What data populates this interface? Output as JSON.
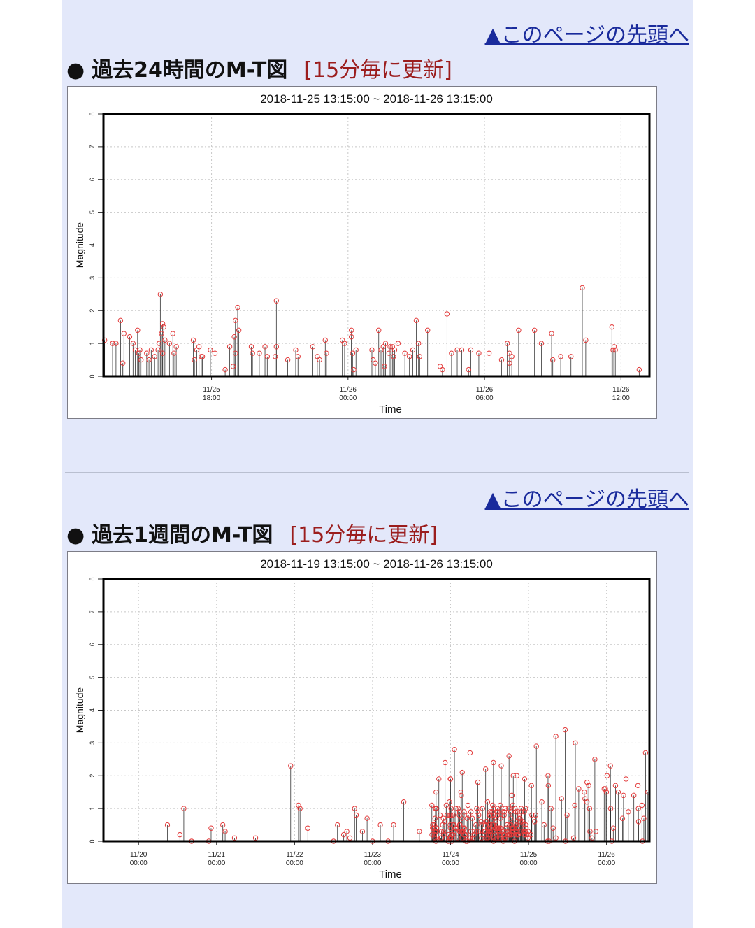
{
  "sections": [
    {
      "top_link": "▲このページの先頭へ",
      "bullet": "●",
      "title": "過去24時間のM-T図",
      "update_note": "[15分毎に更新]"
    },
    {
      "top_link": "▲このページの先頭へ",
      "bullet": "●",
      "title": "過去1週間のM-T図",
      "update_note": "[15分毎に更新]"
    }
  ],
  "colors": {
    "page_background": "#e3e8fa",
    "link": "#1a2b9c",
    "update_note": "#9b1d1d",
    "marker": "#e23a3a",
    "stem": "#333333"
  },
  "chart_data": [
    {
      "type": "scatter",
      "style": "stem-with-circle-markers",
      "title": "2018-11-25 13:15:00 ~ 2018-11-26 13:15:00",
      "xlabel": "Time",
      "ylabel": "Magnitude",
      "x_unit": "hours",
      "xlim": [
        0,
        24
      ],
      "ylim": [
        0,
        8
      ],
      "yticks": [
        "0",
        "1",
        "2",
        "3",
        "4",
        "5",
        "6",
        "7",
        "8"
      ],
      "xticks": [
        {
          "x": 4.75,
          "date": "11/25",
          "time": "18:00"
        },
        {
          "x": 10.75,
          "date": "11/26",
          "time": "00:00"
        },
        {
          "x": 16.75,
          "date": "11/26",
          "time": "06:00"
        },
        {
          "x": 22.75,
          "date": "11/26",
          "time": "12:00"
        }
      ],
      "grid": true,
      "points": [
        {
          "x": 0.05,
          "y": 1.1
        },
        {
          "x": 0.4,
          "y": 1.0
        },
        {
          "x": 0.55,
          "y": 1.0
        },
        {
          "x": 0.75,
          "y": 1.7
        },
        {
          "x": 0.85,
          "y": 0.4
        },
        {
          "x": 0.9,
          "y": 1.3
        },
        {
          "x": 1.15,
          "y": 1.2
        },
        {
          "x": 1.3,
          "y": 1.0
        },
        {
          "x": 1.4,
          "y": 0.8
        },
        {
          "x": 1.5,
          "y": 1.4
        },
        {
          "x": 1.55,
          "y": 0.7
        },
        {
          "x": 1.6,
          "y": 0.8
        },
        {
          "x": 1.65,
          "y": 0.5
        },
        {
          "x": 1.9,
          "y": 0.7
        },
        {
          "x": 2.0,
          "y": 0.5
        },
        {
          "x": 2.1,
          "y": 0.8
        },
        {
          "x": 2.25,
          "y": 0.6
        },
        {
          "x": 2.4,
          "y": 0.8
        },
        {
          "x": 2.45,
          "y": 1.0
        },
        {
          "x": 2.5,
          "y": 2.5
        },
        {
          "x": 2.55,
          "y": 1.3
        },
        {
          "x": 2.6,
          "y": 1.6
        },
        {
          "x": 2.65,
          "y": 1.5
        },
        {
          "x": 2.7,
          "y": 1.1
        },
        {
          "x": 2.6,
          "y": 0.7
        },
        {
          "x": 2.9,
          "y": 1.0
        },
        {
          "x": 3.05,
          "y": 1.3
        },
        {
          "x": 3.1,
          "y": 0.7
        },
        {
          "x": 3.2,
          "y": 0.9
        },
        {
          "x": 3.95,
          "y": 1.1
        },
        {
          "x": 4.0,
          "y": 0.5
        },
        {
          "x": 4.1,
          "y": 0.8
        },
        {
          "x": 4.2,
          "y": 0.9
        },
        {
          "x": 4.3,
          "y": 0.6
        },
        {
          "x": 4.35,
          "y": 0.6
        },
        {
          "x": 4.7,
          "y": 0.8
        },
        {
          "x": 4.9,
          "y": 0.7
        },
        {
          "x": 5.35,
          "y": 0.2
        },
        {
          "x": 5.55,
          "y": 0.9
        },
        {
          "x": 5.7,
          "y": 0.3
        },
        {
          "x": 5.75,
          "y": 1.2
        },
        {
          "x": 5.8,
          "y": 1.7
        },
        {
          "x": 5.8,
          "y": 0.7
        },
        {
          "x": 5.9,
          "y": 2.1
        },
        {
          "x": 5.95,
          "y": 1.4
        },
        {
          "x": 6.5,
          "y": 0.9
        },
        {
          "x": 6.55,
          "y": 0.7
        },
        {
          "x": 6.85,
          "y": 0.7
        },
        {
          "x": 7.1,
          "y": 0.9
        },
        {
          "x": 7.2,
          "y": 0.6
        },
        {
          "x": 7.55,
          "y": 0.6
        },
        {
          "x": 7.6,
          "y": 2.3
        },
        {
          "x": 7.6,
          "y": 0.9
        },
        {
          "x": 8.1,
          "y": 0.5
        },
        {
          "x": 8.45,
          "y": 0.8
        },
        {
          "x": 8.55,
          "y": 0.6
        },
        {
          "x": 9.2,
          "y": 0.9
        },
        {
          "x": 9.4,
          "y": 0.6
        },
        {
          "x": 9.5,
          "y": 0.5
        },
        {
          "x": 9.75,
          "y": 1.1
        },
        {
          "x": 9.8,
          "y": 0.7
        },
        {
          "x": 10.5,
          "y": 1.1
        },
        {
          "x": 10.6,
          "y": 1.0
        },
        {
          "x": 10.9,
          "y": 1.4
        },
        {
          "x": 10.9,
          "y": 1.2
        },
        {
          "x": 10.95,
          "y": 0.7
        },
        {
          "x": 11.0,
          "y": 0.2
        },
        {
          "x": 11.1,
          "y": 0.8
        },
        {
          "x": 11.8,
          "y": 0.8
        },
        {
          "x": 11.85,
          "y": 0.5
        },
        {
          "x": 11.95,
          "y": 0.4
        },
        {
          "x": 12.1,
          "y": 1.4
        },
        {
          "x": 12.2,
          "y": 0.8
        },
        {
          "x": 12.3,
          "y": 0.9
        },
        {
          "x": 12.35,
          "y": 0.3
        },
        {
          "x": 12.4,
          "y": 1.0
        },
        {
          "x": 12.55,
          "y": 0.7
        },
        {
          "x": 12.6,
          "y": 0.9
        },
        {
          "x": 12.7,
          "y": 0.9
        },
        {
          "x": 12.75,
          "y": 0.6
        },
        {
          "x": 12.8,
          "y": 0.8
        },
        {
          "x": 12.95,
          "y": 1.0
        },
        {
          "x": 13.25,
          "y": 0.7
        },
        {
          "x": 13.45,
          "y": 0.6
        },
        {
          "x": 13.6,
          "y": 0.8
        },
        {
          "x": 13.75,
          "y": 1.7
        },
        {
          "x": 13.85,
          "y": 1.0
        },
        {
          "x": 13.9,
          "y": 0.6
        },
        {
          "x": 14.25,
          "y": 1.4
        },
        {
          "x": 14.8,
          "y": 0.3
        },
        {
          "x": 14.9,
          "y": 0.2
        },
        {
          "x": 15.1,
          "y": 1.9
        },
        {
          "x": 15.3,
          "y": 0.7
        },
        {
          "x": 15.55,
          "y": 0.8
        },
        {
          "x": 15.75,
          "y": 0.8
        },
        {
          "x": 16.05,
          "y": 0.2
        },
        {
          "x": 16.15,
          "y": 0.8
        },
        {
          "x": 16.5,
          "y": 0.7
        },
        {
          "x": 16.95,
          "y": 0.7
        },
        {
          "x": 17.5,
          "y": 0.5
        },
        {
          "x": 17.75,
          "y": 1.0
        },
        {
          "x": 17.85,
          "y": 0.7
        },
        {
          "x": 17.85,
          "y": 0.4
        },
        {
          "x": 17.95,
          "y": 0.6
        },
        {
          "x": 18.25,
          "y": 1.4
        },
        {
          "x": 18.95,
          "y": 1.4
        },
        {
          "x": 19.25,
          "y": 1.0
        },
        {
          "x": 19.7,
          "y": 1.3
        },
        {
          "x": 19.75,
          "y": 0.5
        },
        {
          "x": 20.1,
          "y": 0.6
        },
        {
          "x": 20.55,
          "y": 0.6
        },
        {
          "x": 21.05,
          "y": 2.7
        },
        {
          "x": 21.2,
          "y": 1.1
        },
        {
          "x": 22.35,
          "y": 1.5
        },
        {
          "x": 22.4,
          "y": 0.8
        },
        {
          "x": 22.45,
          "y": 0.9
        },
        {
          "x": 22.5,
          "y": 0.8
        },
        {
          "x": 23.55,
          "y": 0.2
        }
      ]
    },
    {
      "type": "scatter",
      "style": "stem-with-circle-markers",
      "title": "2018-11-19 13:15:00 ~ 2018-11-26 13:15:00",
      "xlabel": "Time",
      "ylabel": "Magnitude",
      "x_unit": "days",
      "xlim": [
        0,
        7
      ],
      "ylim": [
        0,
        8
      ],
      "yticks": [
        "0",
        "1",
        "2",
        "3",
        "4",
        "5",
        "6",
        "7",
        "8"
      ],
      "xticks": [
        {
          "x": 0.45,
          "date": "11/20",
          "time": "00:00"
        },
        {
          "x": 1.45,
          "date": "11/21",
          "time": "00:00"
        },
        {
          "x": 2.45,
          "date": "11/22",
          "time": "00:00"
        },
        {
          "x": 3.45,
          "date": "11/23",
          "time": "00:00"
        },
        {
          "x": 4.45,
          "date": "11/24",
          "time": "00:00"
        },
        {
          "x": 5.45,
          "date": "11/25",
          "time": "00:00"
        },
        {
          "x": 6.45,
          "date": "11/26",
          "time": "00:00"
        }
      ],
      "grid": true,
      "points": [
        {
          "x": 0.82,
          "y": 0.5
        },
        {
          "x": 0.98,
          "y": 0.2
        },
        {
          "x": 1.03,
          "y": 1.0
        },
        {
          "x": 1.13,
          "y": 0.0
        },
        {
          "x": 1.35,
          "y": 0.0
        },
        {
          "x": 1.38,
          "y": 0.4
        },
        {
          "x": 1.53,
          "y": 0.5
        },
        {
          "x": 1.56,
          "y": 0.3
        },
        {
          "x": 1.68,
          "y": 0.1
        },
        {
          "x": 1.95,
          "y": 0.1
        },
        {
          "x": 2.4,
          "y": 2.3
        },
        {
          "x": 2.5,
          "y": 1.1
        },
        {
          "x": 2.52,
          "y": 1.0
        },
        {
          "x": 2.62,
          "y": 0.4
        },
        {
          "x": 2.95,
          "y": 0.0
        },
        {
          "x": 3.0,
          "y": 0.5
        },
        {
          "x": 3.08,
          "y": 0.2
        },
        {
          "x": 3.12,
          "y": 0.3
        },
        {
          "x": 3.16,
          "y": 0.1
        },
        {
          "x": 3.22,
          "y": 1.0
        },
        {
          "x": 3.24,
          "y": 0.8
        },
        {
          "x": 3.32,
          "y": 0.3
        },
        {
          "x": 3.38,
          "y": 0.7
        },
        {
          "x": 3.45,
          "y": 0.0
        },
        {
          "x": 3.55,
          "y": 0.5
        },
        {
          "x": 3.65,
          "y": 0.0
        },
        {
          "x": 3.72,
          "y": 0.5
        },
        {
          "x": 3.85,
          "y": 1.2
        },
        {
          "x": 4.05,
          "y": 0.3
        },
        {
          "x": 4.22,
          "y": 0.4
        },
        {
          "x": 4.3,
          "y": 1.9
        },
        {
          "x": 4.38,
          "y": 2.4
        },
        {
          "x": 4.45,
          "y": 1.9
        },
        {
          "x": 4.5,
          "y": 2.8
        },
        {
          "x": 4.6,
          "y": 2.1
        },
        {
          "x": 4.7,
          "y": 2.7
        },
        {
          "x": 4.8,
          "y": 1.8
        },
        {
          "x": 4.9,
          "y": 2.2
        },
        {
          "x": 5.0,
          "y": 2.4
        },
        {
          "x": 5.1,
          "y": 2.3
        },
        {
          "x": 5.2,
          "y": 2.6
        },
        {
          "x": 5.3,
          "y": 2.0
        },
        {
          "x": 5.4,
          "y": 1.9
        },
        {
          "x": 5.55,
          "y": 2.9
        },
        {
          "x": 5.7,
          "y": 2.0
        },
        {
          "x": 5.8,
          "y": 3.2
        },
        {
          "x": 5.92,
          "y": 3.4
        },
        {
          "x": 6.05,
          "y": 3.0
        },
        {
          "x": 6.2,
          "y": 1.8
        },
        {
          "x": 6.3,
          "y": 2.5
        },
        {
          "x": 6.42,
          "y": 1.6
        },
        {
          "x": 6.5,
          "y": 2.3
        },
        {
          "x": 6.6,
          "y": 1.5
        },
        {
          "x": 6.7,
          "y": 1.9
        },
        {
          "x": 6.8,
          "y": 1.4
        },
        {
          "x": 6.95,
          "y": 2.7
        },
        {
          "x": 6.98,
          "y": 1.5
        }
      ],
      "dense_cluster": {
        "x_range": [
          4.2,
          6.98
        ],
        "count": 260,
        "heavy_x_range": [
          4.2,
          5.45
        ],
        "y_distribution": "mostly 0.0-2.0, heavy band 0.0-1.0",
        "seed": 7
      }
    }
  ]
}
